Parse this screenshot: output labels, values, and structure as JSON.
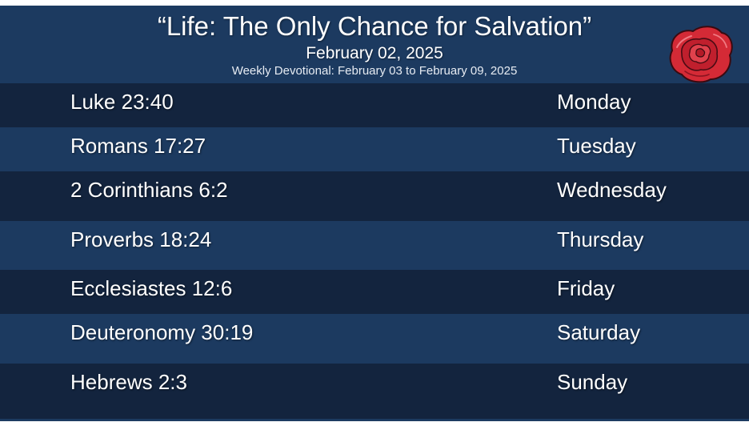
{
  "header": {
    "title": "“Life: The Only Chance for Salvation”",
    "date": "February 02, 2025",
    "subtitle": "Weekly Devotional: February 03  to February 09,  2025"
  },
  "rows": [
    {
      "reference": "Luke 23:40",
      "day": "Monday"
    },
    {
      "reference": "Romans 17:27",
      "day": "Tuesday"
    },
    {
      "reference": "2 Corinthians 6:2",
      "day": "Wednesday"
    },
    {
      "reference": "Proverbs 18:24",
      "day": "Thursday"
    },
    {
      "reference": "Ecclesiastes 12:6",
      "day": "Friday"
    },
    {
      "reference": "Deuteronomy 30:19",
      "day": " Saturday"
    },
    {
      "reference": "Hebrews 2:3",
      "day": "Sunday"
    }
  ],
  "colors": {
    "background": "#1c3a60",
    "row_dark": "#13243e",
    "rose": "#d42a36"
  },
  "icons": [
    "rose-icon"
  ]
}
